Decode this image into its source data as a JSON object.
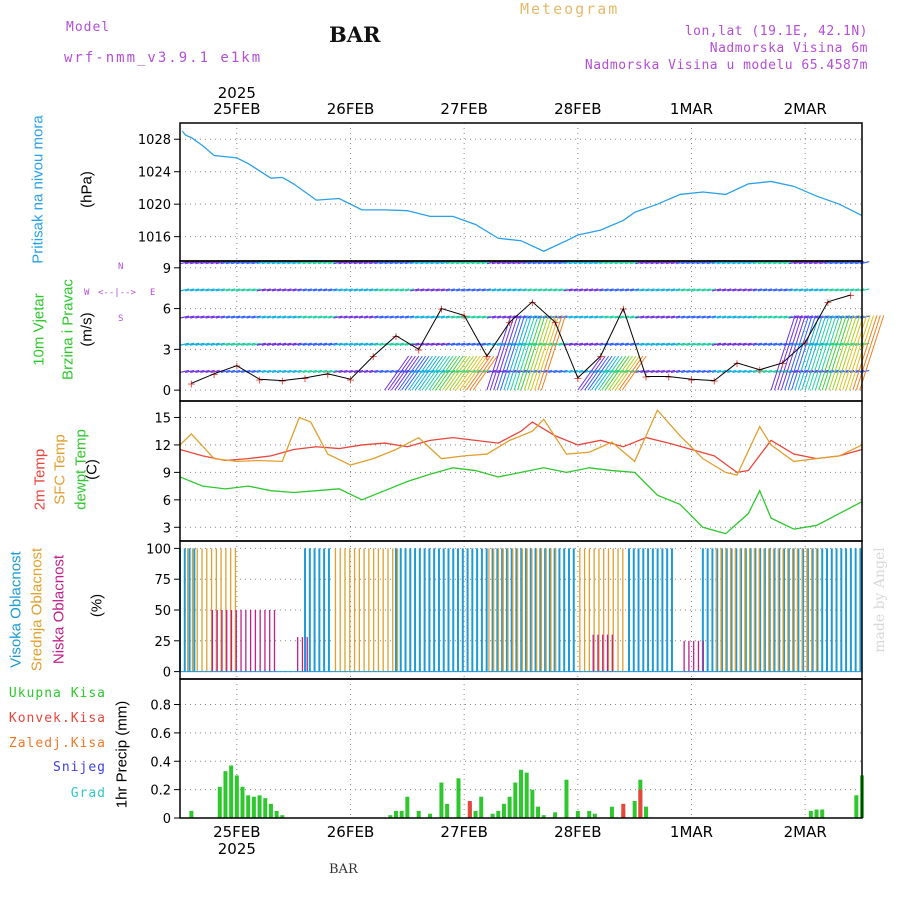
{
  "header": {
    "model_label": "Model",
    "model_value": "wrf-nmm_v3.9.1 e1km",
    "station": "BAR",
    "title": "Meteogram",
    "coords": "lon,lat (19.1E, 42.1N)",
    "elevation": "Nadmorska Visina 6m",
    "model_elevation": "Nadmorska Visina u modelu 65.4587m",
    "bottom_station": "BAR",
    "credit": "made by Angel"
  },
  "colors": {
    "model": "#b44fd6",
    "title": "#e8b96a",
    "pressure": "#2aa0e8",
    "temp2m": "#e8463c",
    "sfc": "#e0a030",
    "dewpt": "#2ec82e",
    "high_cloud": "#1e9ad6",
    "mid_cloud": "#e0a030",
    "low_cloud": "#c0208c",
    "rain": "#2ec82e",
    "conv": "#e8463c",
    "frz": "#f07828",
    "snow": "#4040e0",
    "grad": "#30c8c8"
  },
  "time_axis": {
    "top_year": "2025",
    "bottom_year": "2025",
    "days": [
      "25FEB",
      "26FEB",
      "27FEB",
      "28FEB",
      "1MAR",
      "2MAR"
    ],
    "day_positions": [
      0.5,
      1.5,
      2.5,
      3.5,
      4.5,
      5.5
    ],
    "range": [
      0,
      6.0
    ]
  },
  "panels": {
    "pressure": {
      "title": "Pritisak na nivou mora",
      "unit": "(hPa)"
    },
    "wind": {
      "title1": "10m Vjetar",
      "title2": "Brzina i Pravac",
      "unit": "(m/s)",
      "compass_n": "N",
      "compass_s": "S",
      "compass_w": "W",
      "compass_e": "E",
      "compass_arrow": "<--|-->"
    },
    "temp": {
      "label1": "2m Temp",
      "label2": "SFC Temp",
      "label3": "dewpt Temp",
      "unit": "(C)"
    },
    "cloud": {
      "label1": "Visoka Oblacnost",
      "label2": "Srednja Oblacnost",
      "label3": "Niska Oblacnost",
      "unit": "(%)"
    },
    "precip": {
      "legend": [
        "Ukupna Kisa",
        "Konvek.Kisa",
        "Zaledj.Kisa",
        "Snijeg",
        "Grad"
      ],
      "ylabel": "1hr Precip (mm)"
    }
  },
  "chart_data": [
    {
      "type": "line",
      "title": "",
      "ylabel": "(hPa)",
      "ylim": [
        1013,
        1030
      ],
      "yticks": [
        1016,
        1020,
        1024,
        1028
      ],
      "series": [
        {
          "name": "Pritisak na nivou mora",
          "x": [
            0.02,
            0.05,
            0.1,
            0.2,
            0.3,
            0.5,
            0.6,
            0.8,
            0.9,
            1.0,
            1.2,
            1.4,
            1.6,
            1.8,
            2.0,
            2.2,
            2.4,
            2.6,
            2.8,
            3.0,
            3.2,
            3.4,
            3.5,
            3.7,
            3.9,
            4.0,
            4.2,
            4.4,
            4.6,
            4.8,
            5.0,
            5.2,
            5.4,
            5.6,
            5.8,
            6.0
          ],
          "values": [
            1029.0,
            1028.5,
            1028.2,
            1027.2,
            1026.0,
            1025.7,
            1025.0,
            1023.2,
            1023.3,
            1022.5,
            1020.5,
            1020.7,
            1019.3,
            1019.3,
            1019.2,
            1018.5,
            1018.5,
            1017.5,
            1015.8,
            1015.5,
            1014.2,
            1015.5,
            1016.2,
            1016.8,
            1018.0,
            1019.0,
            1020.0,
            1021.2,
            1021.5,
            1021.2,
            1022.5,
            1022.8,
            1022.2,
            1021.0,
            1020.0,
            1018.6
          ]
        }
      ]
    },
    {
      "type": "scatter",
      "title": "",
      "ylabel": "(m/s)",
      "ylim": [
        -0.8,
        9.5
      ],
      "yticks": [
        0,
        3,
        6,
        9
      ],
      "series": [
        {
          "name": "Brzina",
          "x": [
            0.1,
            0.3,
            0.5,
            0.7,
            0.9,
            1.1,
            1.3,
            1.5,
            1.7,
            1.9,
            2.1,
            2.3,
            2.5,
            2.7,
            2.9,
            3.1,
            3.3,
            3.5,
            3.7,
            3.9,
            4.1,
            4.3,
            4.5,
            4.7,
            4.9,
            5.1,
            5.3,
            5.5,
            5.7,
            5.9
          ],
          "values": [
            0.5,
            1.2,
            1.8,
            0.8,
            0.7,
            0.9,
            1.2,
            0.8,
            2.5,
            4.0,
            3.0,
            6.0,
            5.5,
            2.5,
            5.0,
            6.5,
            5.0,
            0.9,
            2.5,
            6.0,
            1.0,
            1.0,
            0.8,
            0.7,
            2.0,
            1.5,
            2.0,
            3.5,
            6.5,
            7.0
          ]
        }
      ]
    },
    {
      "type": "line",
      "title": "",
      "ylabel": "(C)",
      "ylim": [
        1.5,
        16.8
      ],
      "yticks": [
        3,
        6,
        9,
        12,
        15
      ],
      "series": [
        {
          "name": "2m Temp",
          "x": [
            0.0,
            0.2,
            0.4,
            0.6,
            0.8,
            1.0,
            1.2,
            1.4,
            1.6,
            1.8,
            2.0,
            2.2,
            2.4,
            2.6,
            2.8,
            3.0,
            3.1,
            3.3,
            3.5,
            3.7,
            3.9,
            4.1,
            4.3,
            4.5,
            4.7,
            4.9,
            5.0,
            5.2,
            5.4,
            5.6,
            5.8,
            6.0
          ],
          "values": [
            11.5,
            10.8,
            10.3,
            10.5,
            10.8,
            11.5,
            11.8,
            11.6,
            12.0,
            12.2,
            11.8,
            12.5,
            12.8,
            12.5,
            12.2,
            13.5,
            14.5,
            13.0,
            12.0,
            12.5,
            11.8,
            12.8,
            12.2,
            11.5,
            10.8,
            9.0,
            9.2,
            12.5,
            11.0,
            10.5,
            10.8,
            11.5
          ]
        },
        {
          "name": "SFC Temp",
          "x": [
            0.0,
            0.1,
            0.3,
            0.5,
            0.7,
            0.9,
            1.05,
            1.15,
            1.3,
            1.5,
            1.7,
            1.9,
            2.1,
            2.3,
            2.5,
            2.7,
            2.9,
            3.1,
            3.2,
            3.4,
            3.6,
            3.8,
            4.0,
            4.2,
            4.4,
            4.6,
            4.8,
            4.9,
            5.1,
            5.2,
            5.4,
            5.6,
            5.8,
            6.0
          ],
          "values": [
            12.0,
            13.2,
            10.5,
            10.2,
            10.3,
            10.2,
            15.0,
            14.5,
            11.0,
            9.8,
            10.5,
            11.5,
            12.8,
            10.5,
            10.8,
            11.0,
            12.5,
            13.5,
            14.8,
            11.0,
            11.2,
            12.3,
            10.2,
            15.8,
            13.0,
            10.5,
            9.0,
            8.7,
            14.0,
            12.0,
            10.2,
            10.5,
            10.8,
            12.0
          ]
        },
        {
          "name": "dewpt Temp",
          "x": [
            0.0,
            0.2,
            0.4,
            0.6,
            0.8,
            1.0,
            1.2,
            1.4,
            1.6,
            1.8,
            2.0,
            2.2,
            2.4,
            2.6,
            2.8,
            3.0,
            3.2,
            3.4,
            3.6,
            3.8,
            4.0,
            4.2,
            4.4,
            4.6,
            4.8,
            5.0,
            5.1,
            5.2,
            5.4,
            5.6,
            5.8,
            6.0
          ],
          "values": [
            8.5,
            7.5,
            7.2,
            7.5,
            7.0,
            6.8,
            7.0,
            7.2,
            6.0,
            7.0,
            8.0,
            8.8,
            9.5,
            9.2,
            8.5,
            9.0,
            9.5,
            9.0,
            9.5,
            9.2,
            9.0,
            6.5,
            5.5,
            3.0,
            2.3,
            4.5,
            7.0,
            4.0,
            2.8,
            3.2,
            4.5,
            5.8
          ]
        }
      ]
    },
    {
      "type": "bar",
      "title": "",
      "ylabel": "(%)",
      "ylim": [
        -6,
        106
      ],
      "yticks": [
        0,
        25,
        50,
        75,
        100
      ],
      "series": [
        {
          "name": "Visoka Oblacnost",
          "segments": [
            [
              0.0,
              0.15,
              100
            ],
            [
              1.1,
              1.35,
              100
            ],
            [
              1.9,
              2.7,
              100
            ],
            [
              2.75,
              3.5,
              100
            ],
            [
              3.95,
              4.35,
              100
            ],
            [
              4.6,
              6.0,
              100
            ]
          ]
        },
        {
          "name": "Srednja Oblacnost",
          "segments": [
            [
              0.05,
              0.5,
              100
            ],
            [
              1.35,
              1.9,
              100
            ],
            [
              2.7,
              3.3,
              100
            ],
            [
              3.5,
              3.9,
              100
            ],
            [
              4.7,
              5.6,
              100
            ]
          ]
        },
        {
          "name": "Niska Oblacnost",
          "segments": [
            [
              0.25,
              0.8,
              50
            ],
            [
              1.0,
              1.1,
              28
            ],
            [
              3.6,
              3.8,
              30
            ],
            [
              4.4,
              4.6,
              25
            ]
          ]
        }
      ]
    },
    {
      "type": "bar",
      "title": "",
      "ylabel": "1hr Precip (mm)",
      "ylim": [
        0,
        0.98
      ],
      "yticks": [
        0,
        0.2,
        0.4,
        0.6,
        0.8
      ],
      "series": [
        {
          "name": "Ukupna Kisa",
          "x": [
            0.1,
            0.35,
            0.4,
            0.45,
            0.5,
            0.55,
            0.6,
            0.65,
            0.7,
            0.75,
            0.8,
            0.85,
            0.9,
            1.85,
            1.9,
            1.95,
            2.0,
            2.1,
            2.2,
            2.3,
            2.35,
            2.45,
            2.55,
            2.6,
            2.65,
            2.75,
            2.8,
            2.85,
            2.9,
            2.95,
            3.0,
            3.05,
            3.1,
            3.15,
            3.2,
            3.3,
            3.4,
            3.5,
            3.6,
            3.65,
            3.8,
            3.9,
            4.0,
            4.05,
            4.1,
            5.55,
            5.6,
            5.65,
            5.95,
            6.0
          ],
          "values": [
            0.05,
            0.22,
            0.33,
            0.37,
            0.3,
            0.22,
            0.16,
            0.15,
            0.16,
            0.14,
            0.1,
            0.05,
            0.02,
            0.02,
            0.05,
            0.05,
            0.15,
            0.05,
            0.03,
            0.25,
            0.1,
            0.28,
            0.1,
            0.05,
            0.15,
            0.03,
            0.05,
            0.1,
            0.15,
            0.25,
            0.34,
            0.32,
            0.2,
            0.08,
            0.02,
            0.04,
            0.27,
            0.05,
            0.05,
            0.03,
            0.08,
            0.05,
            0.12,
            0.27,
            0.08,
            0.05,
            0.06,
            0.06,
            0.16,
            0.3
          ]
        },
        {
          "name": "Konvek.Kisa",
          "x": [
            2.55,
            3.9,
            4.05
          ],
          "values": [
            0.12,
            0.1,
            0.2
          ]
        }
      ]
    }
  ]
}
